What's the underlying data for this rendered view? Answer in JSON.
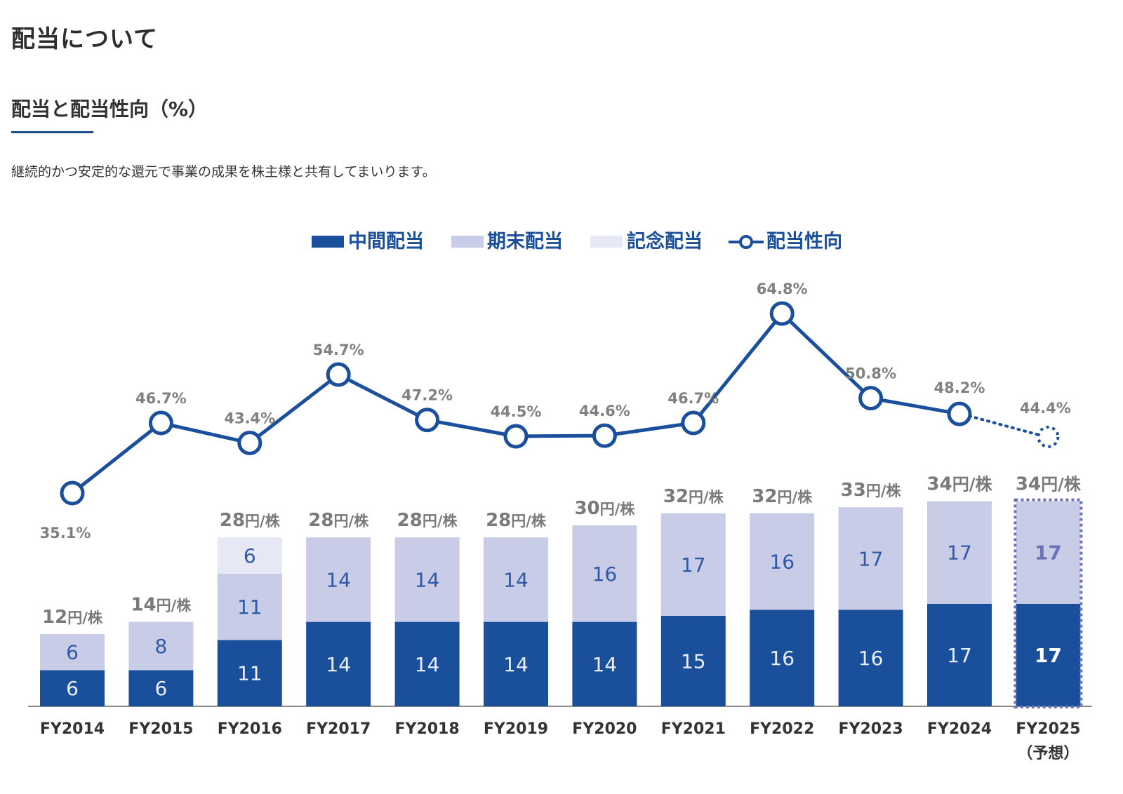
{
  "page": {
    "title": "配当について",
    "section_title": "配当と配当性向（%）",
    "lead": "継続的かつ安定的な還元で事業の成果を株主様と共有してまいります。"
  },
  "colors": {
    "interim": "#1a4f9c",
    "year_end": "#c8cce6",
    "commemorative": "#e6e8f5",
    "payout_line": "#1a4f9c",
    "forecast": "#6b74b8",
    "muted_text": "#7a7a7a"
  },
  "chart_data": {
    "type": "bar",
    "subtype": "stacked-bar-with-line",
    "title": "配当と配当性向（%）",
    "xlabel": "",
    "ylabel": "",
    "categories": [
      "FY2014",
      "FY2015",
      "FY2016",
      "FY2017",
      "FY2018",
      "FY2019",
      "FY2020",
      "FY2021",
      "FY2022",
      "FY2023",
      "FY2024",
      "FY2025"
    ],
    "category_sublabels": [
      "",
      "",
      "",
      "",
      "",
      "",
      "",
      "",
      "",
      "",
      "",
      "（予想）"
    ],
    "legend": [
      "中間配当",
      "期末配当",
      "記念配当",
      "配当性向"
    ],
    "legend_position": "top-center",
    "grid": false,
    "series": [
      {
        "name": "中間配当",
        "type": "bar",
        "values": [
          6,
          6,
          11,
          14,
          14,
          14,
          14,
          15,
          16,
          16,
          17,
          17
        ]
      },
      {
        "name": "期末配当",
        "type": "bar",
        "values": [
          6,
          8,
          11,
          14,
          14,
          14,
          16,
          17,
          16,
          17,
          17,
          17
        ]
      },
      {
        "name": "記念配当",
        "type": "bar",
        "values": [
          0,
          0,
          6,
          0,
          0,
          0,
          0,
          0,
          0,
          0,
          0,
          0
        ]
      },
      {
        "name": "配当性向",
        "type": "line",
        "unit": "%",
        "values": [
          35.1,
          46.7,
          43.4,
          54.7,
          47.2,
          44.5,
          44.6,
          46.7,
          64.8,
          50.8,
          48.2,
          44.4
        ]
      }
    ],
    "totals": [
      12,
      14,
      28,
      28,
      28,
      28,
      30,
      32,
      32,
      33,
      34,
      34
    ],
    "total_labels": [
      "12円/株",
      "14円/株",
      "28円/株",
      "28円/株",
      "28円/株",
      "28円/株",
      "30円/株",
      "32円/株",
      "32円/株",
      "33円/株",
      "34円/株",
      "34円/株"
    ],
    "total_unit": "円/株",
    "payout_labels": [
      "35.1%",
      "46.7%",
      "43.4%",
      "54.7%",
      "47.2%",
      "44.5%",
      "44.6%",
      "46.7%",
      "64.8%",
      "50.8%",
      "48.2%",
      "44.4%"
    ],
    "highlight_index": 10,
    "forecast_index": 11
  }
}
